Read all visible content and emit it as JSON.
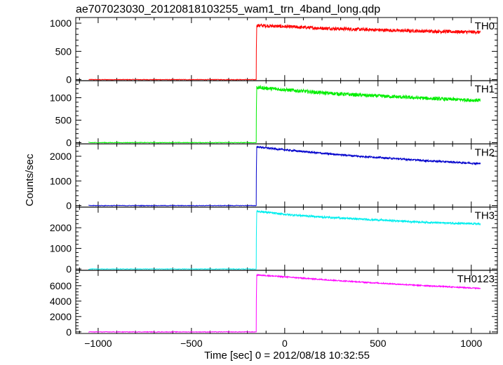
{
  "title": "ae707023030_20120818103255_wam1_trn_4band_long.qdp",
  "xlabel": "Time [sec] 0 = 2012/08/18 10:32:55",
  "ylabel": "Counts/sec",
  "chart_data": {
    "type": "line",
    "title": "ae707023030_20120818103255_wam1_trn_4band_long.qdp",
    "xlabel": "Time [sec] 0 = 2012/08/18 10:32:55",
    "ylabel": "Counts/sec",
    "xlim": [
      -1120,
      1140
    ],
    "xticks": [
      -1000,
      -500,
      0,
      500,
      1000
    ],
    "xtick_labels": [
      "−1000",
      "−500",
      "0",
      "500",
      "1000"
    ],
    "grid": false,
    "panels": [
      {
        "name": "TH0",
        "color": "#ff0000",
        "ylim": [
          -20,
          1100
        ],
        "yticks": [
          0,
          500,
          1000
        ],
        "ytick_labels": [
          "0",
          "500",
          "1000"
        ],
        "pre_level": 0,
        "trigger_time": -150,
        "data_end": 1050,
        "post_x": [
          -150,
          0,
          200,
          400,
          600,
          800,
          1050
        ],
        "post_y": [
          960,
          940,
          910,
          890,
          870,
          855,
          840
        ],
        "noise": 30
      },
      {
        "name": "TH1",
        "color": "#00ee00",
        "ylim": [
          -30,
          1380
        ],
        "yticks": [
          0,
          500,
          1000
        ],
        "ytick_labels": [
          "0",
          "500",
          "1000"
        ],
        "pre_level": 0,
        "trigger_time": -150,
        "data_end": 1050,
        "post_x": [
          -150,
          0,
          200,
          400,
          600,
          800,
          1050
        ],
        "post_y": [
          1230,
          1180,
          1110,
          1060,
          1020,
          980,
          940
        ],
        "noise": 40
      },
      {
        "name": "TH2",
        "color": "#0000cc",
        "ylim": [
          -60,
          2500
        ],
        "yticks": [
          0,
          1000,
          2000
        ],
        "ytick_labels": [
          "0",
          "1000",
          "2000"
        ],
        "pre_level": 0,
        "trigger_time": -150,
        "data_end": 1050,
        "post_x": [
          -150,
          0,
          200,
          400,
          600,
          800,
          1050
        ],
        "post_y": [
          2380,
          2260,
          2120,
          2000,
          1900,
          1800,
          1700
        ],
        "noise": 35
      },
      {
        "name": "TH3",
        "color": "#00eeee",
        "ylim": [
          -60,
          3000
        ],
        "yticks": [
          0,
          1000,
          2000
        ],
        "ytick_labels": [
          "0",
          "1000",
          "2000"
        ],
        "pre_level": 0,
        "trigger_time": -150,
        "data_end": 1050,
        "post_x": [
          -150,
          0,
          200,
          400,
          600,
          800,
          1050
        ],
        "post_y": [
          2800,
          2650,
          2520,
          2420,
          2330,
          2250,
          2180
        ],
        "noise": 45
      },
      {
        "name": "TH0123",
        "color": "#ff00ff",
        "ylim": [
          -200,
          8000
        ],
        "yticks": [
          0,
          2000,
          4000,
          6000
        ],
        "ytick_labels": [
          "0",
          "2000",
          "4000",
          "6000"
        ],
        "pre_level": 0,
        "trigger_time": -150,
        "data_end": 1050,
        "post_x": [
          -150,
          0,
          200,
          400,
          600,
          800,
          1050
        ],
        "post_y": [
          7400,
          7150,
          6800,
          6480,
          6200,
          5950,
          5650
        ],
        "noise": 70
      }
    ]
  }
}
